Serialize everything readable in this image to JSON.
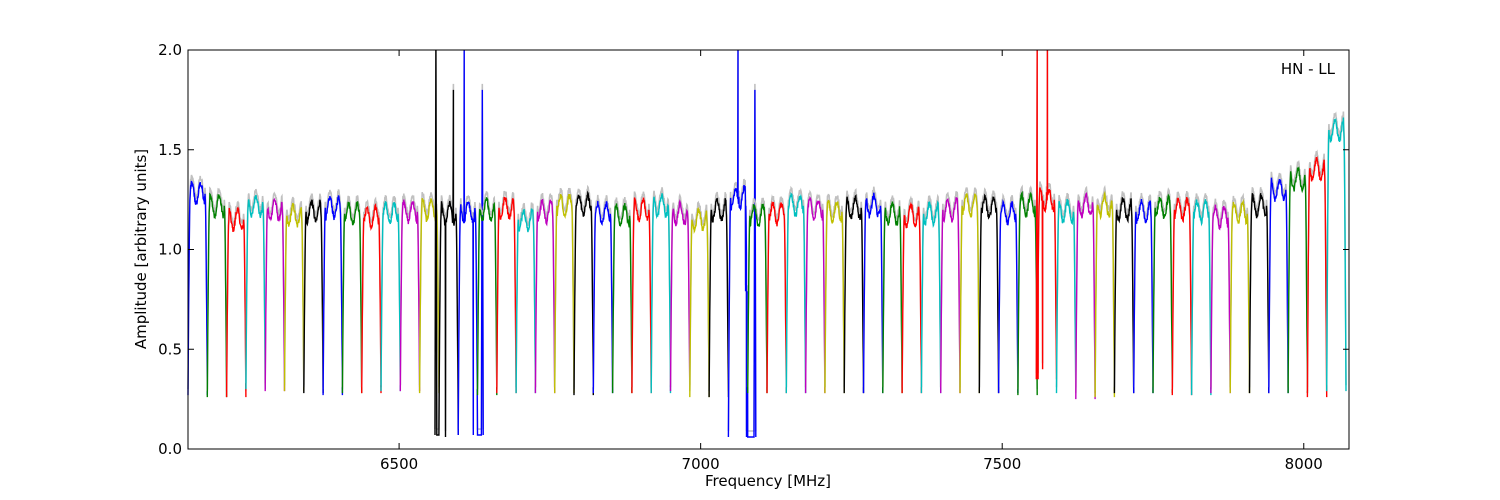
{
  "chart_data": {
    "type": "line",
    "xlabel": "Frequency [MHz]",
    "ylabel": "Amplitude [arbitrary units]",
    "annotation": "HN - LL",
    "xlim": [
      6150,
      8075
    ],
    "ylim": [
      0.0,
      2.0
    ],
    "xticks": [
      6500,
      7000,
      7500,
      8000
    ],
    "xtick_labels": [
      "6500",
      "7000",
      "7500",
      "8000"
    ],
    "yticks": [
      0.0,
      0.5,
      1.0,
      1.5,
      2.0
    ],
    "ytick_labels": [
      "0.0",
      "0.5",
      "1.0",
      "1.5",
      "2.0"
    ],
    "grid": false,
    "colors": [
      "#0000ff",
      "#008000",
      "#ff0000",
      "#00bfbf",
      "#bf00bf",
      "#bfbf00",
      "#000000"
    ],
    "background_trace_color": "#c0c0c0",
    "channel_width_mhz": 32,
    "channels": [
      {
        "start": 6150,
        "level": 1.28,
        "min": 0.27
      },
      {
        "start": 6182,
        "level": 1.22,
        "min": 0.26
      },
      {
        "start": 6214,
        "level": 1.15,
        "min": 0.26
      },
      {
        "start": 6246,
        "level": 1.22,
        "min": 0.3
      },
      {
        "start": 6278,
        "level": 1.2,
        "min": 0.29
      },
      {
        "start": 6310,
        "level": 1.17,
        "min": 0.29
      },
      {
        "start": 6342,
        "level": 1.19,
        "min": 0.28
      },
      {
        "start": 6374,
        "level": 1.21,
        "min": 0.27
      },
      {
        "start": 6406,
        "level": 1.18,
        "min": 0.28
      },
      {
        "start": 6438,
        "level": 1.16,
        "min": 0.28
      },
      {
        "start": 6470,
        "level": 1.18,
        "min": 0.29
      },
      {
        "start": 6502,
        "level": 1.19,
        "min": 0.29
      },
      {
        "start": 6534,
        "level": 1.2,
        "min": 0.28
      },
      {
        "start": 6566,
        "level": 1.18,
        "min": 0.07,
        "spikes": [
          {
            "x": 6561,
            "y": 2.0
          },
          {
            "x": 6577,
            "y": 0.06
          },
          {
            "x": 6590,
            "y": 1.8
          }
        ]
      },
      {
        "start": 6598,
        "level": 1.19,
        "min": 0.07,
        "spikes": [
          {
            "x": 6608,
            "y": 2.0
          },
          {
            "x": 6623,
            "y": 0.07
          },
          {
            "x": 6638,
            "y": 1.8
          }
        ]
      },
      {
        "start": 6630,
        "level": 1.2,
        "min": 0.27
      },
      {
        "start": 6662,
        "level": 1.21,
        "min": 0.28
      },
      {
        "start": 6694,
        "level": 1.15,
        "min": 0.28
      },
      {
        "start": 6726,
        "level": 1.19,
        "min": 0.28
      },
      {
        "start": 6758,
        "level": 1.22,
        "min": 0.28
      },
      {
        "start": 6790,
        "level": 1.22,
        "min": 0.27
      },
      {
        "start": 6822,
        "level": 1.18,
        "min": 0.28
      },
      {
        "start": 6854,
        "level": 1.17,
        "min": 0.28
      },
      {
        "start": 6886,
        "level": 1.2,
        "min": 0.28
      },
      {
        "start": 6918,
        "level": 1.22,
        "min": 0.28
      },
      {
        "start": 6950,
        "level": 1.18,
        "min": 0.29
      },
      {
        "start": 6982,
        "level": 1.15,
        "min": 0.26
      },
      {
        "start": 7014,
        "level": 1.2,
        "min": 0.26
      },
      {
        "start": 7046,
        "level": 1.26,
        "min": 0.06,
        "spikes": [
          {
            "x": 7062,
            "y": 2.0
          },
          {
            "x": 7076,
            "y": 0.06
          },
          {
            "x": 7090,
            "y": 1.8
          }
        ]
      },
      {
        "start": 7078,
        "level": 1.17,
        "min": 0.28
      },
      {
        "start": 7110,
        "level": 1.18,
        "min": 0.28
      },
      {
        "start": 7142,
        "level": 1.22,
        "min": 0.28
      },
      {
        "start": 7174,
        "level": 1.2,
        "min": 0.28
      },
      {
        "start": 7206,
        "level": 1.19,
        "min": 0.28
      },
      {
        "start": 7238,
        "level": 1.21,
        "min": 0.28
      },
      {
        "start": 7270,
        "level": 1.22,
        "min": 0.28
      },
      {
        "start": 7302,
        "level": 1.18,
        "min": 0.28
      },
      {
        "start": 7334,
        "level": 1.17,
        "min": 0.28
      },
      {
        "start": 7366,
        "level": 1.18,
        "min": 0.28
      },
      {
        "start": 7398,
        "level": 1.2,
        "min": 0.28
      },
      {
        "start": 7430,
        "level": 1.22,
        "min": 0.28
      },
      {
        "start": 7462,
        "level": 1.21,
        "min": 0.28
      },
      {
        "start": 7494,
        "level": 1.18,
        "min": 0.28
      },
      {
        "start": 7526,
        "level": 1.22,
        "min": 0.27
      },
      {
        "start": 7558,
        "level": 1.25,
        "min": 0.35,
        "spikes": [
          {
            "x": 7558,
            "y": 2.0
          },
          {
            "x": 7567,
            "y": 0.4
          },
          {
            "x": 7575,
            "y": 2.0
          }
        ]
      },
      {
        "start": 7590,
        "level": 1.19,
        "min": 0.28
      },
      {
        "start": 7622,
        "level": 1.22,
        "min": 0.25
      },
      {
        "start": 7654,
        "level": 1.22,
        "min": 0.26
      },
      {
        "start": 7686,
        "level": 1.2,
        "min": 0.28
      },
      {
        "start": 7718,
        "level": 1.19,
        "min": 0.28
      },
      {
        "start": 7750,
        "level": 1.21,
        "min": 0.28
      },
      {
        "start": 7782,
        "level": 1.2,
        "min": 0.27
      },
      {
        "start": 7814,
        "level": 1.19,
        "min": 0.27
      },
      {
        "start": 7846,
        "level": 1.16,
        "min": 0.28
      },
      {
        "start": 7878,
        "level": 1.18,
        "min": 0.28
      },
      {
        "start": 7910,
        "level": 1.22,
        "min": 0.28
      },
      {
        "start": 7942,
        "level": 1.3,
        "min": 0.28
      },
      {
        "start": 7974,
        "level": 1.35,
        "min": 0.28
      },
      {
        "start": 8006,
        "level": 1.4,
        "min": 0.26
      },
      {
        "start": 8038,
        "level": 1.6,
        "min": 0.29
      }
    ]
  }
}
